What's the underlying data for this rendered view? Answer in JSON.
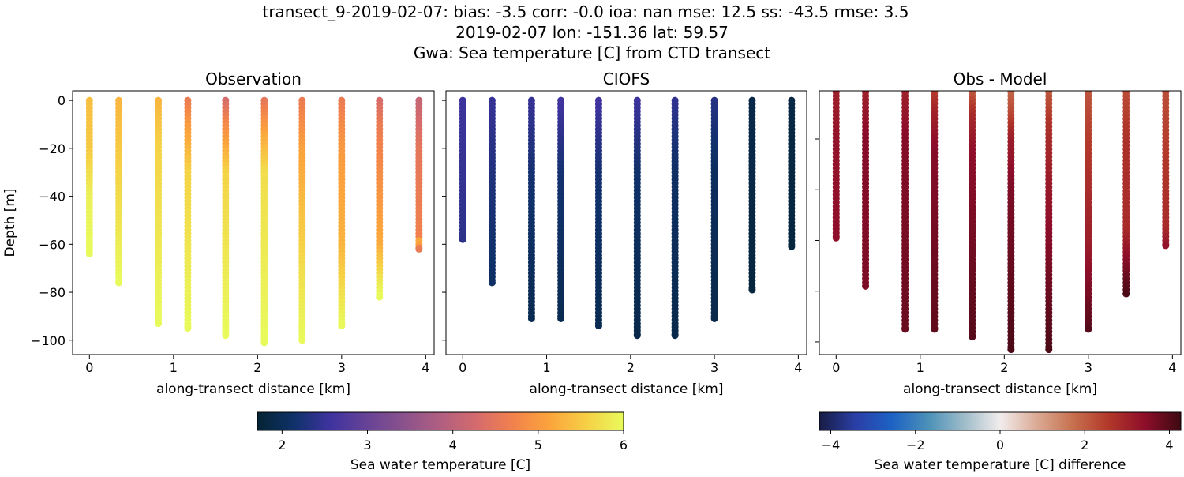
{
  "title_lines": [
    "transect_9-2019-02-07: bias: -3.5  corr: -0.0  ioa: nan  mse: 12.5  ss: -43.5  rmse: 3.5",
    "2019-02-07 lon: -151.36 lat: 59.57",
    "Gwa: Sea temperature [C] from CTD transect"
  ],
  "chart_data": [
    {
      "type": "scatter",
      "title": "Observation",
      "xlabel": "along-transect distance [km]",
      "ylabel": "Depth [m]",
      "xlim": [
        -0.2,
        4.1
      ],
      "ylim": [
        -106,
        4
      ],
      "xticks": [
        "0",
        "1",
        "2",
        "3",
        "4"
      ],
      "yticks": [
        "0",
        "−20",
        "−40",
        "−60",
        "−80",
        "−100"
      ],
      "colormap": "thermal",
      "profiles": [
        {
          "x": 0.0,
          "bottom": -64,
          "temp": [
            [
              0,
              5.4
            ],
            [
              -20,
              5.5
            ],
            [
              -40,
              5.9
            ],
            [
              -64,
              6.0
            ]
          ]
        },
        {
          "x": 0.35,
          "bottom": -76,
          "temp": [
            [
              0,
              5.3
            ],
            [
              -30,
              5.6
            ],
            [
              -76,
              6.0
            ]
          ]
        },
        {
          "x": 0.82,
          "bottom": -93,
          "temp": [
            [
              0,
              5.3
            ],
            [
              -20,
              5.6
            ],
            [
              -93,
              6.0
            ]
          ]
        },
        {
          "x": 1.17,
          "bottom": -95,
          "temp": [
            [
              0,
              4.6
            ],
            [
              -10,
              5.0
            ],
            [
              -30,
              5.6
            ],
            [
              -95,
              6.0
            ]
          ]
        },
        {
          "x": 1.62,
          "bottom": -98,
          "temp": [
            [
              0,
              4.3
            ],
            [
              -10,
              4.8
            ],
            [
              -30,
              5.6
            ],
            [
              -98,
              6.0
            ]
          ]
        },
        {
          "x": 2.08,
          "bottom": -101,
          "temp": [
            [
              0,
              4.5
            ],
            [
              -15,
              5.2
            ],
            [
              -30,
              5.7
            ],
            [
              -101,
              6.0
            ]
          ]
        },
        {
          "x": 2.53,
          "bottom": -100,
          "temp": [
            [
              0,
              4.6
            ],
            [
              -20,
              5.1
            ],
            [
              -70,
              5.7
            ],
            [
              -100,
              6.0
            ]
          ]
        },
        {
          "x": 3.0,
          "bottom": -94,
          "temp": [
            [
              0,
              4.6
            ],
            [
              -20,
              5.0
            ],
            [
              -60,
              5.3
            ],
            [
              -94,
              6.0
            ]
          ]
        },
        {
          "x": 3.45,
          "bottom": -82,
          "temp": [
            [
              0,
              4.3
            ],
            [
              -10,
              4.6
            ],
            [
              -60,
              5.2
            ],
            [
              -75,
              5.8
            ],
            [
              -82,
              6.0
            ]
          ]
        },
        {
          "x": 3.92,
          "bottom": -62,
          "temp": [
            [
              0,
              4.1
            ],
            [
              -20,
              4.5
            ],
            [
              -57,
              4.7
            ],
            [
              -59,
              5.3
            ],
            [
              -62,
              4.6
            ]
          ]
        }
      ]
    },
    {
      "type": "scatter",
      "title": "CIOFS",
      "xlabel": "along-transect distance [km]",
      "xlim": [
        -0.2,
        4.1
      ],
      "ylim": [
        -106,
        4
      ],
      "xticks": [
        "0",
        "1",
        "2",
        "3",
        "4"
      ],
      "colormap": "thermal",
      "profiles": [
        {
          "x": 0.0,
          "bottom": -58,
          "temp": [
            [
              0,
              2.55
            ],
            [
              -58,
              2.4
            ]
          ]
        },
        {
          "x": 0.35,
          "bottom": -76,
          "temp": [
            [
              0,
              2.5
            ],
            [
              -30,
              2.3
            ],
            [
              -76,
              2.1
            ]
          ]
        },
        {
          "x": 0.82,
          "bottom": -91,
          "temp": [
            [
              0,
              2.5
            ],
            [
              -30,
              2.2
            ],
            [
              -91,
              1.95
            ]
          ]
        },
        {
          "x": 1.17,
          "bottom": -91,
          "temp": [
            [
              0,
              2.6
            ],
            [
              -30,
              2.2
            ],
            [
              -91,
              1.95
            ]
          ]
        },
        {
          "x": 1.62,
          "bottom": -94,
          "temp": [
            [
              0,
              2.6
            ],
            [
              -30,
              2.2
            ],
            [
              -94,
              1.95
            ]
          ]
        },
        {
          "x": 2.08,
          "bottom": -98,
          "temp": [
            [
              0,
              2.55
            ],
            [
              -30,
              2.15
            ],
            [
              -98,
              1.9
            ]
          ]
        },
        {
          "x": 2.53,
          "bottom": -98,
          "temp": [
            [
              0,
              2.45
            ],
            [
              -30,
              2.1
            ],
            [
              -98,
              1.9
            ]
          ]
        },
        {
          "x": 3.0,
          "bottom": -91,
          "temp": [
            [
              0,
              2.35
            ],
            [
              -30,
              2.05
            ],
            [
              -91,
              1.9
            ]
          ]
        },
        {
          "x": 3.45,
          "bottom": -79,
          "temp": [
            [
              0,
              1.9
            ],
            [
              -79,
              1.8
            ]
          ]
        },
        {
          "x": 3.92,
          "bottom": -61,
          "temp": [
            [
              0,
              1.85
            ],
            [
              -61,
              1.8
            ]
          ]
        }
      ]
    },
    {
      "type": "scatter",
      "title": "Obs - Model",
      "xlabel": "along-transect distance [km]",
      "xlim": [
        -0.2,
        4.1
      ],
      "ylim": [
        -105,
        -1
      ],
      "colormap": "balance",
      "xticks": [
        "0",
        "1",
        "2",
        "3",
        "4"
      ],
      "profiles": [
        {
          "x": 0.0,
          "bottom": -59,
          "temp": [
            [
              0,
              3.0
            ],
            [
              -20,
              3.3
            ],
            [
              -59,
              3.4
            ]
          ]
        },
        {
          "x": 0.35,
          "bottom": -78,
          "temp": [
            [
              0,
              3.0
            ],
            [
              -20,
              3.5
            ],
            [
              -78,
              3.6
            ]
          ]
        },
        {
          "x": 0.82,
          "bottom": -95,
          "temp": [
            [
              0,
              3.0
            ],
            [
              -20,
              3.5
            ],
            [
              -95,
              3.8
            ]
          ]
        },
        {
          "x": 1.17,
          "bottom": -95,
          "temp": [
            [
              0,
              2.4
            ],
            [
              -10,
              3.0
            ],
            [
              -25,
              3.5
            ],
            [
              -95,
              3.9
            ]
          ]
        },
        {
          "x": 1.62,
          "bottom": -98,
          "temp": [
            [
              0,
              1.9
            ],
            [
              -10,
              2.8
            ],
            [
              -25,
              3.4
            ],
            [
              -98,
              4.0
            ]
          ]
        },
        {
          "x": 2.08,
          "bottom": -103,
          "temp": [
            [
              0,
              1.8
            ],
            [
              -10,
              2.3
            ],
            [
              -20,
              3.1
            ],
            [
              -40,
              3.6
            ],
            [
              -103,
              4.1
            ]
          ]
        },
        {
          "x": 2.53,
          "bottom": -103,
          "temp": [
            [
              0,
              2.0
            ],
            [
              -15,
              2.7
            ],
            [
              -40,
              3.2
            ],
            [
              -103,
              4.1
            ]
          ]
        },
        {
          "x": 3.0,
          "bottom": -95,
          "temp": [
            [
              0,
              2.1
            ],
            [
              -20,
              2.5
            ],
            [
              -60,
              3.1
            ],
            [
              -95,
              4.0
            ]
          ]
        },
        {
          "x": 3.45,
          "bottom": -81,
          "temp": [
            [
              0,
              2.2
            ],
            [
              -20,
              2.7
            ],
            [
              -55,
              2.8
            ],
            [
              -70,
              3.6
            ],
            [
              -81,
              4.1
            ]
          ]
        },
        {
          "x": 3.92,
          "bottom": -62,
          "temp": [
            [
              0,
              2.2
            ],
            [
              -30,
              2.6
            ],
            [
              -55,
              2.8
            ],
            [
              -62,
              3.3
            ]
          ]
        }
      ]
    }
  ],
  "colorbars": [
    {
      "label": "Sea water temperature [C]",
      "range": [
        1.71,
        6.0
      ],
      "ticks": [
        "2",
        "3",
        "4",
        "5",
        "6"
      ],
      "tick_values": [
        2,
        3,
        4,
        5,
        6
      ],
      "colormap": "thermal"
    },
    {
      "label": "Sea water temperature [C] difference",
      "range": [
        -4.27,
        4.27
      ],
      "ticks": [
        "−4",
        "−2",
        "0",
        "2",
        "4"
      ],
      "tick_values": [
        -4,
        -2,
        0,
        2,
        4
      ],
      "colormap": "balance"
    }
  ],
  "colormaps": {
    "thermal": [
      "#042333",
      "#0f3169",
      "#3f339f",
      "#674396",
      "#8a528c",
      "#b05f81",
      "#d56b6c",
      "#f2824c",
      "#fba53c",
      "#f6d045",
      "#e8fa5b"
    ],
    "balance": [
      "#181c43",
      "#2a3ea6",
      "#1d62c4",
      "#4a90b8",
      "#9ebcc9",
      "#f1ecec",
      "#dbab96",
      "#c7714f",
      "#b2382a",
      "#8e0e2a",
      "#3c0912"
    ]
  }
}
